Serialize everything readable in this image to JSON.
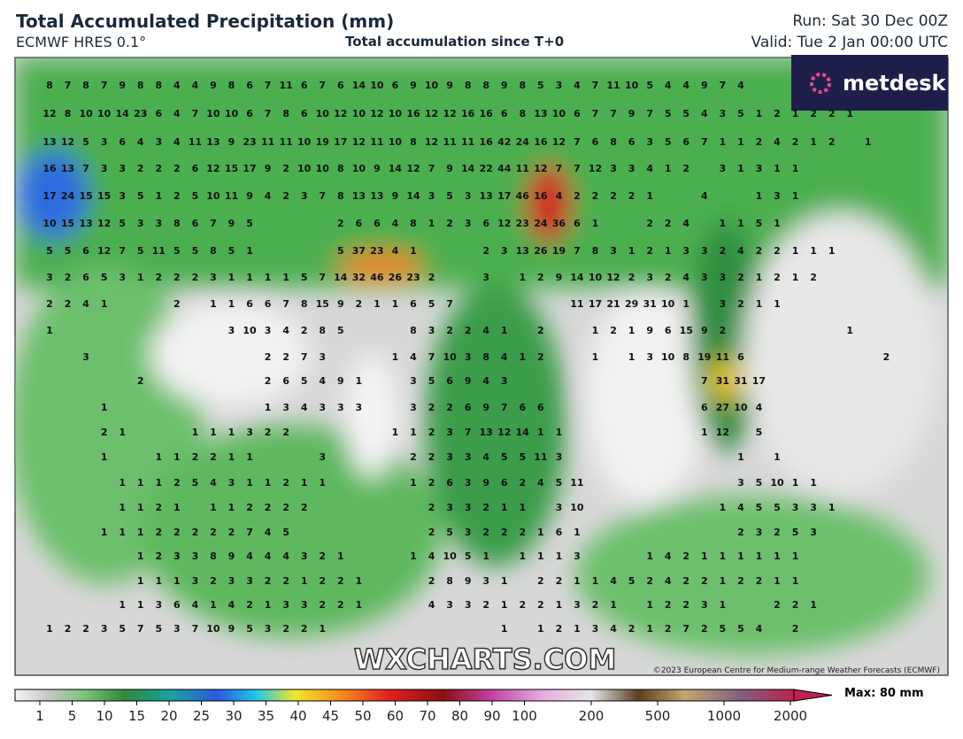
{
  "header": {
    "title": "Total Accumulated Precipitation (mm)",
    "model": "ECMWF HRES 0.1°",
    "subtitle": "Total accumulation since T+0",
    "run": "Run: Sat 30 Dec 00Z",
    "valid": "Valid: Tue 2 Jan 00:00 UTC"
  },
  "map": {
    "logo": "metdesk",
    "watermark": "WXCHARTS.COM",
    "copyright": "©2023 European Centre for Medium-range Weather Forecasts (ECMWF)",
    "rows": [
      [
        8,
        7,
        8,
        7,
        9,
        8,
        8,
        4,
        4,
        9,
        8,
        6,
        7,
        11,
        6,
        7,
        6,
        14,
        10,
        6,
        9,
        10,
        9,
        8,
        8,
        9,
        8,
        5,
        3,
        4,
        7,
        11,
        10,
        5,
        4,
        4,
        9,
        7,
        4
      ],
      [
        12,
        8,
        10,
        10,
        14,
        23,
        6,
        4,
        7,
        10,
        10,
        6,
        7,
        8,
        6,
        10,
        12,
        10,
        12,
        10,
        16,
        12,
        12,
        16,
        16,
        6,
        8,
        13,
        10,
        6,
        7,
        7,
        9,
        7,
        5,
        5,
        4,
        3,
        5,
        1,
        2,
        1,
        2,
        2,
        1
      ],
      [
        13,
        12,
        5,
        3,
        6,
        4,
        3,
        4,
        11,
        13,
        9,
        23,
        11,
        11,
        10,
        19,
        17,
        12,
        11,
        10,
        8,
        12,
        11,
        11,
        16,
        42,
        24,
        16,
        12,
        7,
        6,
        8,
        6,
        3,
        5,
        6,
        7,
        1,
        1,
        2,
        4,
        2,
        1,
        2,
        null,
        1
      ],
      [
        16,
        13,
        7,
        3,
        3,
        2,
        2,
        2,
        6,
        12,
        15,
        17,
        9,
        2,
        10,
        10,
        8,
        10,
        9,
        14,
        12,
        7,
        9,
        14,
        22,
        44,
        11,
        12,
        7,
        7,
        12,
        3,
        3,
        4,
        1,
        2,
        null,
        3,
        1,
        3,
        1,
        1
      ],
      [
        17,
        24,
        15,
        15,
        3,
        5,
        1,
        2,
        5,
        10,
        11,
        9,
        4,
        2,
        3,
        7,
        8,
        13,
        13,
        9,
        14,
        3,
        5,
        3,
        13,
        17,
        46,
        16,
        4,
        2,
        2,
        2,
        2,
        1,
        null,
        null,
        4,
        null,
        null,
        1,
        3,
        1
      ],
      [
        10,
        15,
        13,
        12,
        5,
        3,
        3,
        8,
        6,
        7,
        9,
        5,
        null,
        null,
        null,
        null,
        2,
        6,
        6,
        4,
        8,
        1,
        2,
        3,
        6,
        12,
        23,
        24,
        36,
        6,
        1,
        null,
        null,
        2,
        2,
        4,
        null,
        1,
        1,
        5,
        1
      ],
      [
        5,
        5,
        6,
        12,
        7,
        5,
        11,
        5,
        5,
        8,
        5,
        1,
        null,
        null,
        null,
        null,
        5,
        37,
        23,
        4,
        1,
        null,
        null,
        null,
        2,
        3,
        13,
        26,
        19,
        7,
        8,
        3,
        1,
        2,
        1,
        3,
        3,
        2,
        4,
        2,
        2,
        1,
        1,
        1
      ],
      [
        3,
        2,
        6,
        5,
        3,
        1,
        2,
        2,
        2,
        3,
        1,
        1,
        1,
        1,
        5,
        7,
        14,
        32,
        46,
        26,
        23,
        2,
        null,
        null,
        3,
        null,
        1,
        2,
        9,
        14,
        10,
        12,
        2,
        3,
        2,
        4,
        3,
        3,
        2,
        1,
        2,
        1,
        2
      ],
      [
        2,
        2,
        4,
        1,
        null,
        null,
        null,
        2,
        null,
        1,
        1,
        6,
        6,
        7,
        8,
        15,
        9,
        2,
        1,
        1,
        6,
        5,
        7,
        null,
        null,
        null,
        null,
        null,
        null,
        11,
        17,
        21,
        29,
        31,
        10,
        1,
        null,
        3,
        2,
        1,
        1
      ],
      [
        1,
        null,
        null,
        null,
        null,
        null,
        null,
        null,
        null,
        null,
        3,
        10,
        3,
        4,
        2,
        8,
        5,
        null,
        null,
        null,
        8,
        3,
        2,
        2,
        4,
        1,
        null,
        2,
        null,
        null,
        1,
        2,
        1,
        9,
        6,
        15,
        9,
        2,
        null,
        null,
        null,
        null,
        null,
        null,
        1
      ],
      [
        null,
        null,
        3,
        null,
        null,
        null,
        null,
        null,
        null,
        null,
        null,
        null,
        2,
        2,
        7,
        3,
        null,
        null,
        null,
        1,
        4,
        7,
        10,
        3,
        8,
        4,
        1,
        2,
        null,
        null,
        1,
        null,
        1,
        3,
        10,
        8,
        19,
        11,
        6,
        null,
        null,
        null,
        null,
        null,
        null,
        null,
        2
      ],
      [
        null,
        null,
        null,
        null,
        null,
        2,
        null,
        null,
        null,
        null,
        null,
        null,
        2,
        6,
        5,
        4,
        9,
        1,
        null,
        null,
        3,
        5,
        6,
        9,
        4,
        3,
        null,
        null,
        null,
        null,
        null,
        null,
        null,
        null,
        null,
        null,
        7,
        31,
        31,
        17
      ],
      [
        null,
        null,
        null,
        1,
        null,
        null,
        null,
        null,
        null,
        null,
        null,
        null,
        1,
        3,
        4,
        3,
        3,
        3,
        null,
        null,
        3,
        2,
        2,
        6,
        9,
        7,
        6,
        6,
        null,
        null,
        null,
        null,
        null,
        null,
        null,
        null,
        6,
        27,
        10,
        4
      ],
      [
        null,
        null,
        null,
        2,
        1,
        null,
        null,
        null,
        1,
        1,
        1,
        3,
        2,
        2,
        null,
        null,
        null,
        null,
        null,
        1,
        1,
        2,
        3,
        7,
        13,
        12,
        14,
        1,
        1,
        null,
        null,
        null,
        null,
        null,
        null,
        null,
        1,
        12,
        null,
        5
      ],
      [
        null,
        null,
        null,
        1,
        null,
        null,
        1,
        1,
        2,
        2,
        1,
        1,
        null,
        null,
        null,
        3,
        null,
        null,
        null,
        null,
        2,
        2,
        3,
        3,
        4,
        5,
        5,
        11,
        3,
        null,
        null,
        null,
        null,
        null,
        null,
        null,
        null,
        null,
        1,
        null,
        1
      ],
      [
        null,
        null,
        null,
        null,
        1,
        1,
        1,
        2,
        5,
        4,
        3,
        1,
        1,
        2,
        1,
        1,
        null,
        null,
        null,
        null,
        1,
        2,
        6,
        3,
        9,
        6,
        2,
        4,
        5,
        11,
        null,
        null,
        null,
        null,
        null,
        null,
        null,
        null,
        3,
        5,
        10,
        1,
        1
      ],
      [
        null,
        null,
        null,
        null,
        1,
        1,
        2,
        1,
        null,
        1,
        1,
        2,
        2,
        2,
        2,
        null,
        null,
        null,
        null,
        null,
        null,
        2,
        3,
        3,
        2,
        1,
        1,
        null,
        3,
        10,
        null,
        null,
        null,
        null,
        null,
        null,
        null,
        1,
        4,
        5,
        5,
        3,
        3,
        1
      ],
      [
        null,
        null,
        null,
        1,
        1,
        1,
        2,
        2,
        2,
        2,
        2,
        7,
        4,
        5,
        null,
        null,
        null,
        null,
        null,
        null,
        null,
        2,
        5,
        3,
        2,
        2,
        2,
        1,
        6,
        1,
        null,
        null,
        null,
        null,
        null,
        null,
        null,
        null,
        2,
        3,
        2,
        5,
        3
      ],
      [
        null,
        null,
        null,
        null,
        null,
        1,
        2,
        3,
        3,
        8,
        9,
        4,
        4,
        4,
        3,
        2,
        1,
        null,
        null,
        null,
        1,
        4,
        10,
        5,
        1,
        null,
        1,
        1,
        1,
        3,
        null,
        null,
        null,
        1,
        4,
        2,
        1,
        1,
        1,
        1,
        1,
        1
      ],
      [
        null,
        null,
        null,
        null,
        null,
        1,
        1,
        1,
        3,
        2,
        3,
        3,
        2,
        2,
        1,
        2,
        2,
        1,
        null,
        null,
        null,
        2,
        8,
        9,
        3,
        1,
        null,
        2,
        2,
        1,
        1,
        4,
        5,
        2,
        4,
        2,
        2,
        1,
        2,
        2,
        1,
        1
      ],
      [
        null,
        null,
        null,
        null,
        1,
        1,
        3,
        6,
        4,
        1,
        4,
        2,
        1,
        3,
        3,
        2,
        2,
        1,
        null,
        null,
        null,
        4,
        3,
        3,
        2,
        1,
        2,
        2,
        1,
        3,
        2,
        1,
        null,
        1,
        2,
        2,
        3,
        1,
        null,
        null,
        2,
        2,
        1
      ],
      [
        1,
        2,
        2,
        3,
        5,
        7,
        5,
        3,
        7,
        10,
        9,
        5,
        3,
        2,
        2,
        1,
        null,
        null,
        null,
        null,
        null,
        null,
        null,
        null,
        null,
        1,
        null,
        1,
        2,
        1,
        3,
        4,
        2,
        1,
        2,
        7,
        2,
        5,
        5,
        4,
        null,
        2
      ]
    ]
  },
  "legend": {
    "ticks": [
      1,
      5,
      10,
      15,
      20,
      25,
      30,
      35,
      40,
      45,
      50,
      60,
      70,
      80,
      90,
      100,
      200,
      500,
      1000,
      2000
    ],
    "max": "Max: 80 mm"
  }
}
